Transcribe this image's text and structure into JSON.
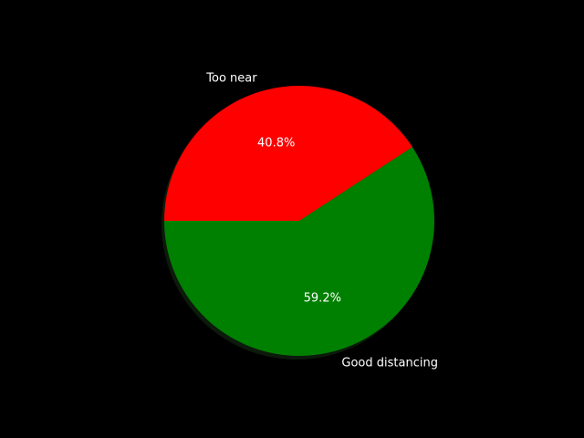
{
  "chart_data": {
    "type": "pie",
    "categories": [
      "Too near",
      "Good distancing"
    ],
    "values": [
      40.8,
      59.2
    ],
    "percent_labels": [
      "40.8%",
      "59.2%"
    ],
    "colors": [
      "#ff0000",
      "#008000"
    ],
    "background": "#000000",
    "shadow": true,
    "start_angle_deg": 180,
    "direction": "clockwise"
  }
}
